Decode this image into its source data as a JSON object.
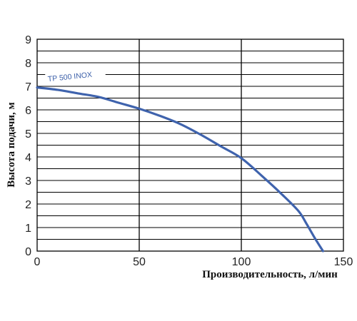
{
  "chart_data": {
    "type": "line",
    "xlabel": "Производительность, л/мин",
    "ylabel": "Высота подачи, м",
    "xlim": [
      0,
      150
    ],
    "ylim": [
      0,
      9
    ],
    "x_ticks": [
      0,
      50,
      100,
      150
    ],
    "y_ticks": [
      0,
      1,
      2,
      3,
      4,
      5,
      6,
      7,
      8,
      9
    ],
    "x_major_grid_step": 50,
    "y_minor_grid_step": 0.5,
    "grid": true,
    "colors": {
      "series": "#3f63ad",
      "grid": "#000000",
      "label_box": "#ffffff"
    },
    "series": [
      {
        "name": "TP 500 INOX",
        "x": [
          0,
          10,
          20,
          30,
          40,
          50,
          60,
          70,
          80,
          90,
          100,
          110,
          120,
          128,
          132,
          136,
          140
        ],
        "y": [
          6.95,
          6.85,
          6.7,
          6.55,
          6.3,
          6.05,
          5.75,
          5.4,
          4.95,
          4.45,
          3.95,
          3.2,
          2.4,
          1.7,
          1.15,
          0.55,
          0
        ]
      }
    ]
  }
}
